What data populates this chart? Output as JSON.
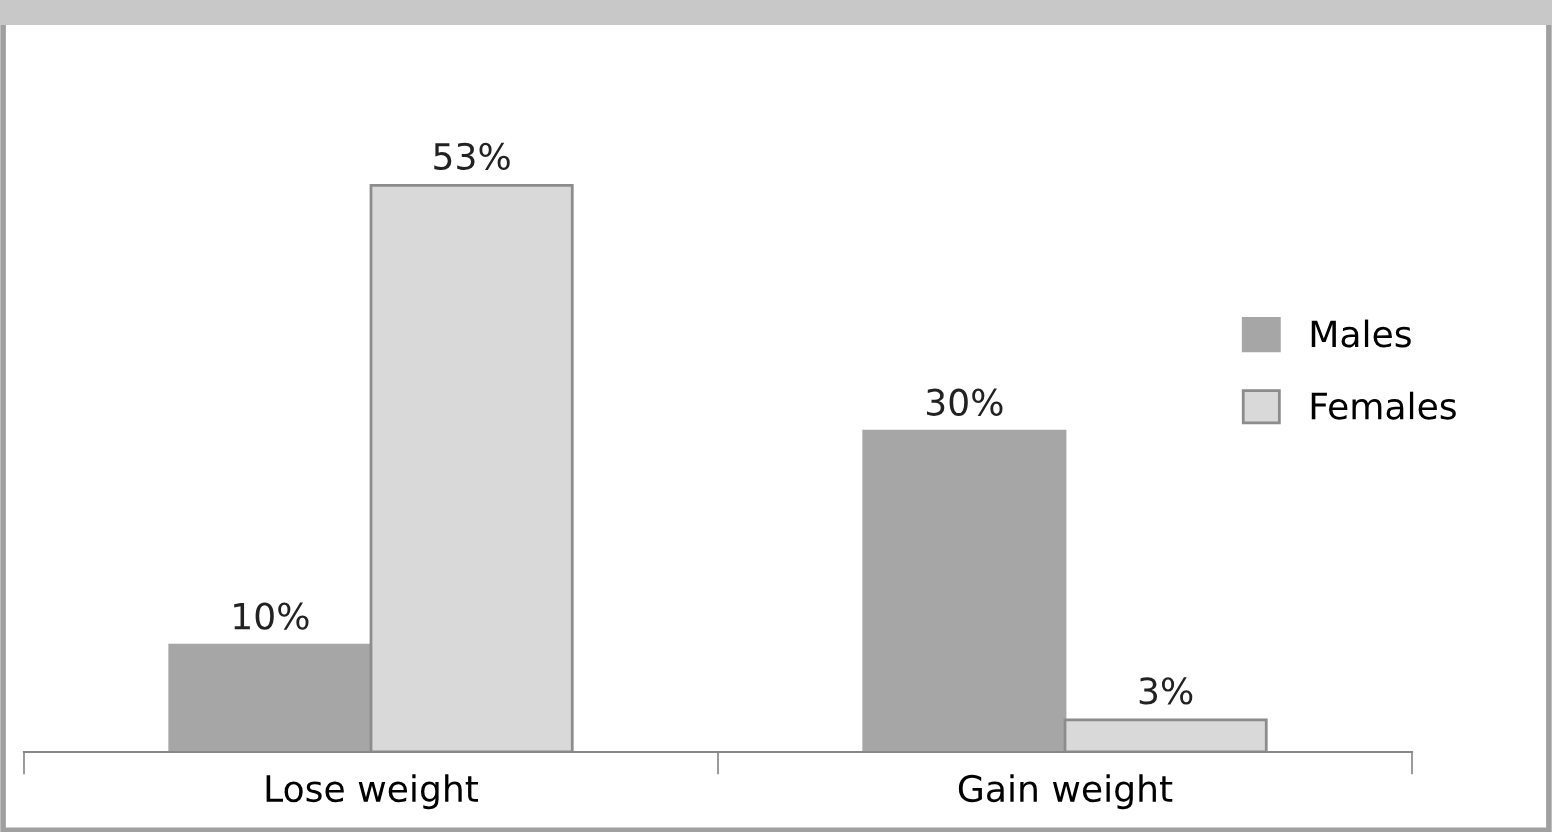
{
  "chart_data": {
    "type": "bar",
    "categories": [
      "Lose weight",
      "Gain weight"
    ],
    "series": [
      {
        "name": "Males",
        "color": "#a6a6a6",
        "values": [
          10,
          30
        ],
        "value_labels": [
          "10%",
          "30%"
        ]
      },
      {
        "name": "Females",
        "color": "#d9d9d9",
        "values": [
          53,
          3
        ],
        "value_labels": [
          "53%",
          "3%"
        ]
      }
    ],
    "legend": "right",
    "grid": false
  }
}
